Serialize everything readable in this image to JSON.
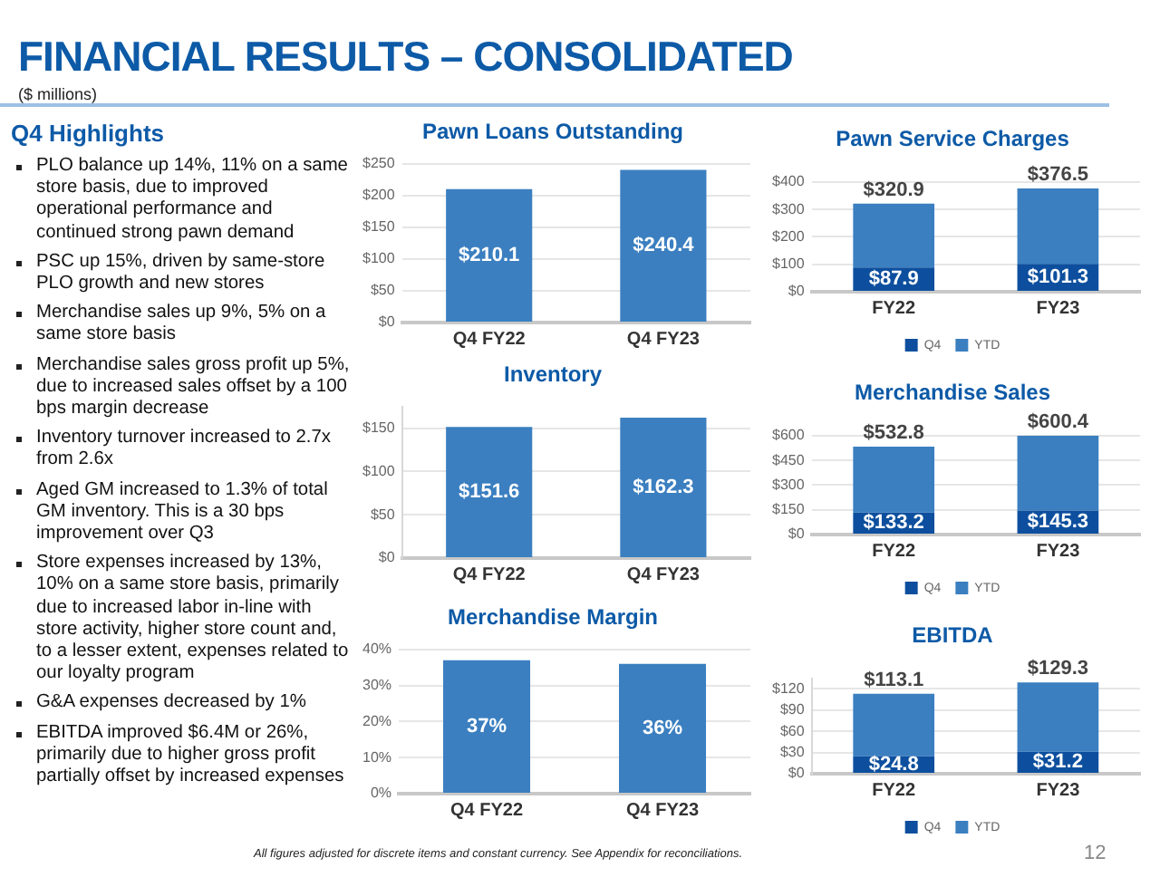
{
  "chart_data": [
    {
      "type": "other",
      "title": "FINANCIAL RESULTS – CONSOLIDATED",
      "subtitle": "($ millions)",
      "annotations": [
        "All figures adjusted for discrete items and constant currency. See Appendix for reconciliations.",
        "12"
      ]
    },
    {
      "type": "other",
      "title": "Q4 Highlights",
      "annotations": [
        "PLO balance up 14%, 11% on a same store basis, due to improved operational performance and continued strong pawn demand",
        "PSC up 15%, driven by same-store PLO growth and new stores",
        "Merchandise sales up 9%, 5% on a same store basis",
        "Merchandise sales gross profit up 5%, due to increased sales offset by a 100 bps margin decrease",
        "Inventory turnover increased to 2.7x from 2.6x",
        "Aged GM increased to 1.3% of total GM inventory. This is a 30 bps improvement over Q3",
        "Store expenses increased by 13%, 10% on a same store basis, primarily due to increased labor in-line with store activity, higher store count and, to a lesser extent, expenses related to our loyalty program",
        "G&A expenses decreased by 1%",
        "EBITDA improved $6.4M or 26%, primarily due to higher gross profit partially offset by increased expenses"
      ]
    },
    {
      "type": "bar",
      "title": "Pawn Loans Outstanding",
      "categories": [
        "Q4 FY22",
        "Q4 FY23"
      ],
      "values": [
        210.1,
        240.4
      ],
      "value_labels": [
        "$210.1",
        "$240.4"
      ],
      "color": "#3b7fc0",
      "ylim": [
        0,
        250
      ],
      "yticks": [
        {
          "value": 0,
          "label": "$0"
        },
        {
          "value": 50,
          "label": "$50"
        },
        {
          "value": 100,
          "label": "$100"
        },
        {
          "value": 150,
          "label": "$150"
        },
        {
          "value": 200,
          "label": "$200"
        },
        {
          "value": 250,
          "label": "$250"
        }
      ],
      "grid": "y"
    },
    {
      "type": "bar",
      "title": "Pawn Service Charges",
      "categories": [
        "FY22",
        "FY23"
      ],
      "stacked": true,
      "series": [
        {
          "name": "Q4",
          "color": "#0d4f9e",
          "values": [
            87.9,
            101.3
          ],
          "value_labels": [
            "$87.9",
            "$101.3"
          ]
        },
        {
          "name": "YTD",
          "color": "#3b7fc0",
          "values": [
            233.0,
            275.2
          ]
        }
      ],
      "totals": [
        "$320.9",
        "$376.5"
      ],
      "ylim": [
        0,
        400
      ],
      "yticks": [
        {
          "value": 0,
          "label": "$0"
        },
        {
          "value": 100,
          "label": "$100"
        },
        {
          "value": 200,
          "label": "$200"
        },
        {
          "value": 300,
          "label": "$300"
        },
        {
          "value": 400,
          "label": "$400"
        }
      ],
      "grid": "y",
      "legend": "bottom"
    },
    {
      "type": "bar",
      "title": "Inventory",
      "categories": [
        "Q4 FY22",
        "Q4 FY23"
      ],
      "values": [
        151.6,
        162.3
      ],
      "value_labels": [
        "$151.6",
        "$162.3"
      ],
      "color": "#3b7fc0",
      "ylim": [
        0,
        175
      ],
      "yticks": [
        {
          "value": 0,
          "label": "$0"
        },
        {
          "value": 50,
          "label": "$50"
        },
        {
          "value": 100,
          "label": "$100"
        },
        {
          "value": 150,
          "label": "$150"
        }
      ],
      "grid": "y"
    },
    {
      "type": "bar",
      "title": "Merchandise Sales",
      "categories": [
        "FY22",
        "FY23"
      ],
      "stacked": true,
      "series": [
        {
          "name": "Q4",
          "color": "#0d4f9e",
          "values": [
            133.2,
            145.3
          ],
          "value_labels": [
            "$133.2",
            "$145.3"
          ]
        },
        {
          "name": "YTD",
          "color": "#3b7fc0",
          "values": [
            399.6,
            455.1
          ]
        }
      ],
      "totals": [
        "$532.8",
        "$600.4"
      ],
      "ylim": [
        0,
        600
      ],
      "yticks": [
        {
          "value": 0,
          "label": "$0"
        },
        {
          "value": 150,
          "label": "$150"
        },
        {
          "value": 300,
          "label": "$300"
        },
        {
          "value": 450,
          "label": "$450"
        },
        {
          "value": 600,
          "label": "$600"
        }
      ],
      "grid": "y",
      "legend": "bottom"
    },
    {
      "type": "bar",
      "title": "Merchandise Margin",
      "categories": [
        "Q4 FY22",
        "Q4 FY23"
      ],
      "values": [
        37,
        36
      ],
      "value_labels": [
        "37%",
        "36%"
      ],
      "color": "#3b7fc0",
      "ylim": [
        0,
        40
      ],
      "yticks": [
        {
          "value": 0,
          "label": "0%"
        },
        {
          "value": 10,
          "label": "10%"
        },
        {
          "value": 20,
          "label": "20%"
        },
        {
          "value": 30,
          "label": "30%"
        },
        {
          "value": 40,
          "label": "40%"
        }
      ],
      "grid": "y"
    },
    {
      "type": "bar",
      "title": "EBITDA",
      "categories": [
        "FY22",
        "FY23"
      ],
      "stacked": true,
      "series": [
        {
          "name": "Q4",
          "color": "#0d4f9e",
          "values": [
            24.8,
            31.2
          ],
          "value_labels": [
            "$24.8",
            "$31.2"
          ]
        },
        {
          "name": "YTD",
          "color": "#3b7fc0",
          "values": [
            88.3,
            98.1
          ]
        }
      ],
      "totals": [
        "$113.1",
        "$129.3"
      ],
      "ylim": [
        0,
        135
      ],
      "yticks": [
        {
          "value": 0,
          "label": "$0"
        },
        {
          "value": 30,
          "label": "$30"
        },
        {
          "value": 60,
          "label": "$60"
        },
        {
          "value": 90,
          "label": "$90"
        },
        {
          "value": 120,
          "label": "$120"
        }
      ],
      "grid": "y",
      "legend": "bottom"
    }
  ]
}
